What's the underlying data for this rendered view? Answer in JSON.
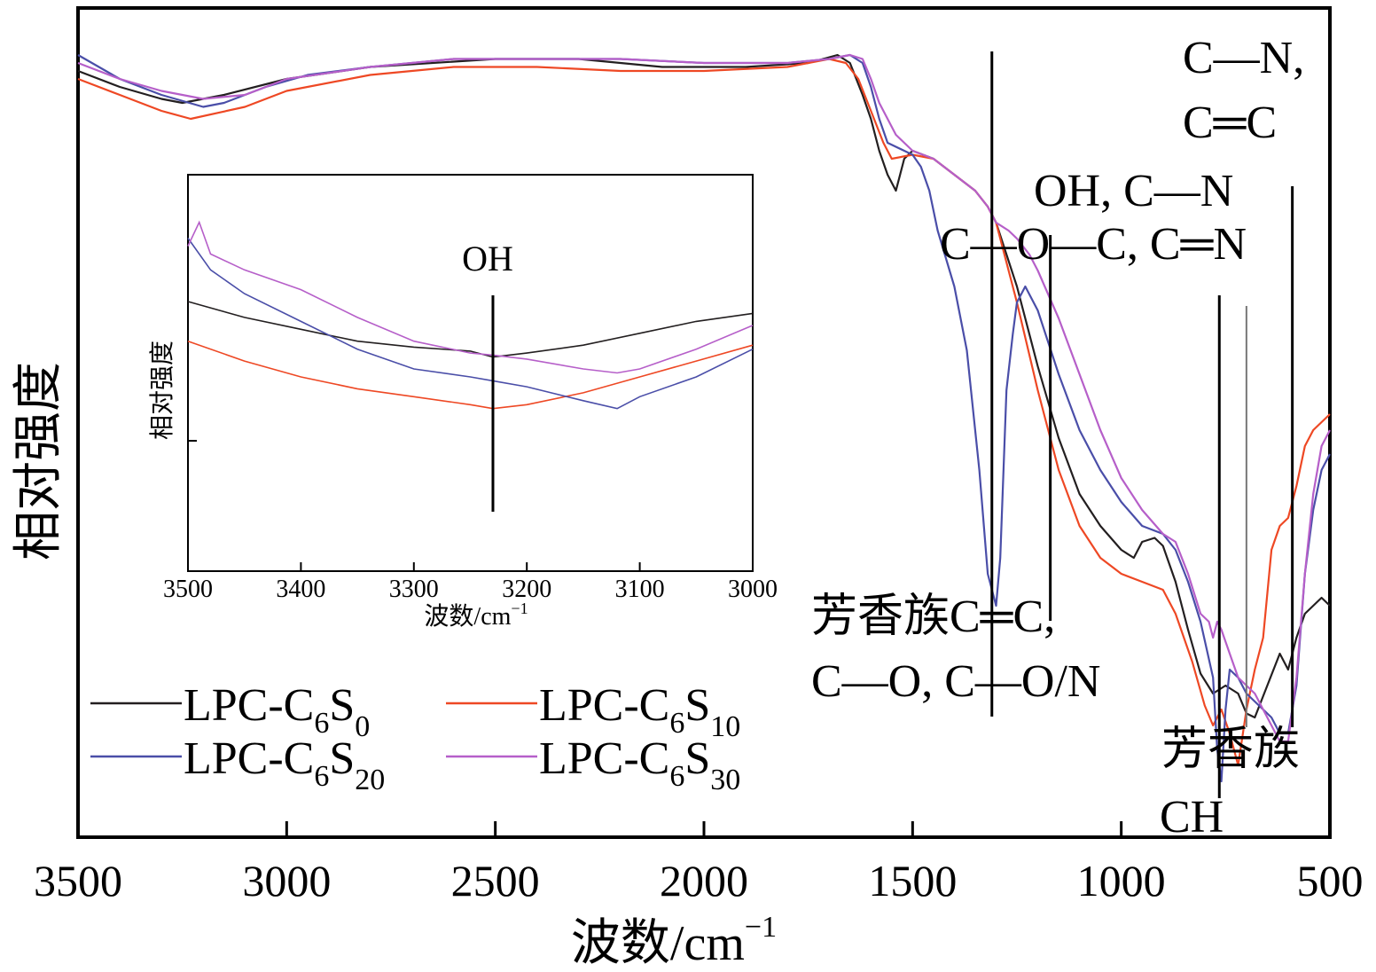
{
  "chart_data": {
    "type": "line",
    "xlabel": "波数/cm",
    "xlabel_sup": "−1",
    "ylabel": "相对强度",
    "xlim": [
      3500,
      500
    ],
    "ylim": [
      0,
      100
    ],
    "x_ticks": [
      "3500",
      "3000",
      "2500",
      "2000",
      "1500",
      "1000",
      "500"
    ],
    "x_tick_values": [
      3500,
      3000,
      2500,
      2000,
      1500,
      1000,
      500
    ],
    "series": [
      {
        "name": "LPC-C6S0",
        "label_main": "LPC-C",
        "label_sub1": "6",
        "label_mid": "S",
        "label_sub2": "0",
        "color": "#231f20",
        "points": [
          [
            3500,
            95
          ],
          [
            3400,
            93
          ],
          [
            3300,
            91.5
          ],
          [
            3250,
            91
          ],
          [
            3150,
            92
          ],
          [
            3000,
            94
          ],
          [
            2800,
            95.5
          ],
          [
            2500,
            96.5
          ],
          [
            2300,
            96.5
          ],
          [
            2100,
            95.5
          ],
          [
            1900,
            95.5
          ],
          [
            1750,
            96
          ],
          [
            1680,
            97
          ],
          [
            1650,
            96
          ],
          [
            1620,
            92
          ],
          [
            1600,
            89
          ],
          [
            1580,
            85
          ],
          [
            1560,
            82
          ],
          [
            1540,
            80
          ],
          [
            1520,
            84
          ],
          [
            1500,
            85
          ],
          [
            1450,
            84
          ],
          [
            1400,
            82
          ],
          [
            1350,
            80
          ],
          [
            1320,
            78
          ],
          [
            1300,
            76
          ],
          [
            1250,
            68
          ],
          [
            1200,
            58
          ],
          [
            1150,
            49
          ],
          [
            1100,
            42
          ],
          [
            1050,
            38
          ],
          [
            1000,
            35
          ],
          [
            970,
            34
          ],
          [
            950,
            36
          ],
          [
            920,
            36.5
          ],
          [
            900,
            35.5
          ],
          [
            870,
            31
          ],
          [
            840,
            25
          ],
          [
            810,
            19.5
          ],
          [
            780,
            17
          ],
          [
            750,
            18
          ],
          [
            720,
            17
          ],
          [
            700,
            14.5
          ],
          [
            680,
            14
          ],
          [
            650,
            18
          ],
          [
            620,
            22
          ],
          [
            600,
            20
          ],
          [
            580,
            24
          ],
          [
            560,
            27
          ],
          [
            540,
            28
          ],
          [
            520,
            29
          ],
          [
            500,
            28
          ]
        ]
      },
      {
        "name": "LPC-C6S10",
        "label_main": "LPC-C",
        "label_sub1": "6",
        "label_mid": "S",
        "label_sub2": "10",
        "color": "#ee4824",
        "points": [
          [
            3500,
            94
          ],
          [
            3400,
            92
          ],
          [
            3300,
            90
          ],
          [
            3230,
            89
          ],
          [
            3100,
            90.5
          ],
          [
            3000,
            92.5
          ],
          [
            2800,
            94.5
          ],
          [
            2600,
            95.5
          ],
          [
            2400,
            95.5
          ],
          [
            2200,
            95
          ],
          [
            2000,
            95
          ],
          [
            1800,
            95.5
          ],
          [
            1700,
            96.5
          ],
          [
            1660,
            96
          ],
          [
            1630,
            94
          ],
          [
            1600,
            90
          ],
          [
            1570,
            86
          ],
          [
            1550,
            84
          ],
          [
            1500,
            84.5
          ],
          [
            1450,
            84
          ],
          [
            1400,
            82
          ],
          [
            1350,
            80
          ],
          [
            1320,
            78
          ],
          [
            1300,
            76
          ],
          [
            1250,
            66
          ],
          [
            1200,
            55
          ],
          [
            1150,
            45
          ],
          [
            1100,
            38
          ],
          [
            1050,
            34
          ],
          [
            1000,
            32
          ],
          [
            950,
            31
          ],
          [
            900,
            30
          ],
          [
            870,
            27
          ],
          [
            830,
            21
          ],
          [
            800,
            15.5
          ],
          [
            780,
            13
          ],
          [
            760,
            15
          ],
          [
            740,
            12
          ],
          [
            720,
            8
          ],
          [
            700,
            15
          ],
          [
            680,
            20
          ],
          [
            660,
            24
          ],
          [
            640,
            35
          ],
          [
            620,
            38
          ],
          [
            600,
            39
          ],
          [
            580,
            43
          ],
          [
            560,
            48
          ],
          [
            540,
            50
          ],
          [
            520,
            51
          ],
          [
            500,
            52
          ]
        ]
      },
      {
        "name": "LPC-C6S20",
        "label_main": "LPC-C",
        "label_sub1": "6",
        "label_mid": "S",
        "label_sub2": "20",
        "color": "#4a4ea8",
        "points": [
          [
            3500,
            97
          ],
          [
            3400,
            94
          ],
          [
            3300,
            92
          ],
          [
            3200,
            90.5
          ],
          [
            3150,
            91
          ],
          [
            3050,
            93
          ],
          [
            2950,
            94.5
          ],
          [
            2800,
            95.5
          ],
          [
            2600,
            96.5
          ],
          [
            2400,
            96.5
          ],
          [
            2200,
            96.5
          ],
          [
            2000,
            96
          ],
          [
            1800,
            96
          ],
          [
            1700,
            96.5
          ],
          [
            1650,
            97
          ],
          [
            1620,
            96
          ],
          [
            1600,
            93
          ],
          [
            1580,
            89
          ],
          [
            1560,
            86
          ],
          [
            1520,
            85
          ],
          [
            1500,
            84.5
          ],
          [
            1480,
            83
          ],
          [
            1460,
            80
          ],
          [
            1440,
            75
          ],
          [
            1400,
            68
          ],
          [
            1370,
            60
          ],
          [
            1340,
            45
          ],
          [
            1320,
            32
          ],
          [
            1300,
            28
          ],
          [
            1290,
            34
          ],
          [
            1275,
            55
          ],
          [
            1260,
            62
          ],
          [
            1250,
            66
          ],
          [
            1230,
            68
          ],
          [
            1200,
            65
          ],
          [
            1150,
            57
          ],
          [
            1100,
            50
          ],
          [
            1050,
            45
          ],
          [
            1000,
            41
          ],
          [
            950,
            38
          ],
          [
            900,
            37
          ],
          [
            870,
            35
          ],
          [
            840,
            31
          ],
          [
            810,
            26
          ],
          [
            780,
            19
          ],
          [
            770,
            10
          ],
          [
            760,
            6
          ],
          [
            750,
            15
          ],
          [
            740,
            20
          ],
          [
            720,
            19
          ],
          [
            700,
            17
          ],
          [
            680,
            16
          ],
          [
            660,
            15
          ],
          [
            640,
            14
          ],
          [
            620,
            12
          ],
          [
            600,
            12
          ],
          [
            580,
            18
          ],
          [
            560,
            32
          ],
          [
            540,
            40
          ],
          [
            520,
            45
          ],
          [
            500,
            47
          ]
        ]
      },
      {
        "name": "LPC-C6S30",
        "label_main": "LPC-C",
        "label_sub1": "6",
        "label_mid": "S",
        "label_sub2": "30",
        "color": "#b65fc9",
        "points": [
          [
            3500,
            96
          ],
          [
            3400,
            94
          ],
          [
            3300,
            92.5
          ],
          [
            3200,
            91.5
          ],
          [
            3100,
            92
          ],
          [
            3000,
            94
          ],
          [
            2800,
            95.5
          ],
          [
            2600,
            96.5
          ],
          [
            2400,
            96.5
          ],
          [
            2200,
            96.5
          ],
          [
            2000,
            96
          ],
          [
            1800,
            96
          ],
          [
            1700,
            96.5
          ],
          [
            1650,
            97
          ],
          [
            1620,
            96.5
          ],
          [
            1600,
            94
          ],
          [
            1580,
            91
          ],
          [
            1560,
            89
          ],
          [
            1540,
            87
          ],
          [
            1500,
            85
          ],
          [
            1450,
            84
          ],
          [
            1400,
            82
          ],
          [
            1350,
            80
          ],
          [
            1320,
            78
          ],
          [
            1300,
            76
          ],
          [
            1270,
            75
          ],
          [
            1250,
            74
          ],
          [
            1220,
            72
          ],
          [
            1200,
            70
          ],
          [
            1150,
            64
          ],
          [
            1100,
            57
          ],
          [
            1050,
            50
          ],
          [
            1000,
            44
          ],
          [
            950,
            40
          ],
          [
            900,
            37
          ],
          [
            870,
            36
          ],
          [
            840,
            32
          ],
          [
            810,
            27
          ],
          [
            790,
            26
          ],
          [
            780,
            24
          ],
          [
            770,
            26
          ],
          [
            760,
            25
          ],
          [
            740,
            22
          ],
          [
            720,
            19
          ],
          [
            700,
            18
          ],
          [
            680,
            17
          ],
          [
            660,
            15
          ],
          [
            640,
            13
          ],
          [
            620,
            11
          ],
          [
            600,
            11
          ],
          [
            580,
            19
          ],
          [
            560,
            32
          ],
          [
            540,
            42
          ],
          [
            520,
            48
          ],
          [
            500,
            50
          ]
        ]
      }
    ],
    "inset": {
      "xlim": [
        3500,
        3000
      ],
      "ylim": [
        0,
        100
      ],
      "x_ticks": [
        "3500",
        "3400",
        "3300",
        "3200",
        "3100",
        "3000"
      ],
      "x_tick_values": [
        3500,
        3400,
        3300,
        3200,
        3100,
        3000
      ],
      "xlabel": "波数/cm",
      "xlabel_sup": "−1",
      "ylabel": "相对强度",
      "annotation": {
        "text": "OH",
        "x": 3230
      },
      "series": [
        {
          "name": "LPC-C6S0",
          "color": "#231f20",
          "points": [
            [
              3500,
              68
            ],
            [
              3450,
              64
            ],
            [
              3400,
              61
            ],
            [
              3350,
              58
            ],
            [
              3300,
              56.5
            ],
            [
              3250,
              55.5
            ],
            [
              3230,
              54
            ],
            [
              3200,
              55
            ],
            [
              3150,
              57
            ],
            [
              3100,
              60
            ],
            [
              3050,
              63
            ],
            [
              3000,
              65
            ]
          ]
        },
        {
          "name": "LPC-C6S10",
          "color": "#ee4824",
          "points": [
            [
              3500,
              58
            ],
            [
              3450,
              53
            ],
            [
              3400,
              49
            ],
            [
              3350,
              46
            ],
            [
              3300,
              44
            ],
            [
              3250,
              42
            ],
            [
              3230,
              41
            ],
            [
              3200,
              42
            ],
            [
              3150,
              45
            ],
            [
              3100,
              49
            ],
            [
              3050,
              53
            ],
            [
              3000,
              57
            ]
          ]
        },
        {
          "name": "LPC-C6S20",
          "color": "#4a4ea8",
          "points": [
            [
              3500,
              84
            ],
            [
              3480,
              76
            ],
            [
              3450,
              70
            ],
            [
              3400,
              63
            ],
            [
              3350,
              56
            ],
            [
              3300,
              51
            ],
            [
              3250,
              49
            ],
            [
              3230,
              48
            ],
            [
              3200,
              46.5
            ],
            [
              3150,
              43
            ],
            [
              3120,
              41
            ],
            [
              3100,
              44
            ],
            [
              3050,
              49
            ],
            [
              3000,
              56
            ]
          ]
        },
        {
          "name": "LPC-C6S30",
          "color": "#b65fc9",
          "points": [
            [
              3500,
              82
            ],
            [
              3490,
              88
            ],
            [
              3480,
              80
            ],
            [
              3450,
              76
            ],
            [
              3400,
              71
            ],
            [
              3350,
              64
            ],
            [
              3300,
              58
            ],
            [
              3250,
              55
            ],
            [
              3230,
              54.5
            ],
            [
              3200,
              53.5
            ],
            [
              3150,
              51
            ],
            [
              3120,
              50
            ],
            [
              3100,
              51
            ],
            [
              3050,
              56
            ],
            [
              3000,
              62
            ]
          ]
        }
      ]
    },
    "markers": [
      {
        "x": 1310,
        "label_lines": [
          "芳香族C═C,",
          "C—O, C—O/N"
        ],
        "color": "#000000"
      },
      {
        "x": 1170,
        "label_lines": [
          "OH, C—N",
          "C—O—C, C═N"
        ],
        "color": "#000000"
      },
      {
        "x": 590,
        "label_lines": [
          "C—N,",
          "C═C"
        ],
        "color": "#000000"
      },
      {
        "x": 765,
        "label_lines": [
          "芳香族",
          "CH"
        ],
        "color": "#000000"
      },
      {
        "x": 700,
        "label_lines": [],
        "color": "#777777"
      }
    ]
  }
}
